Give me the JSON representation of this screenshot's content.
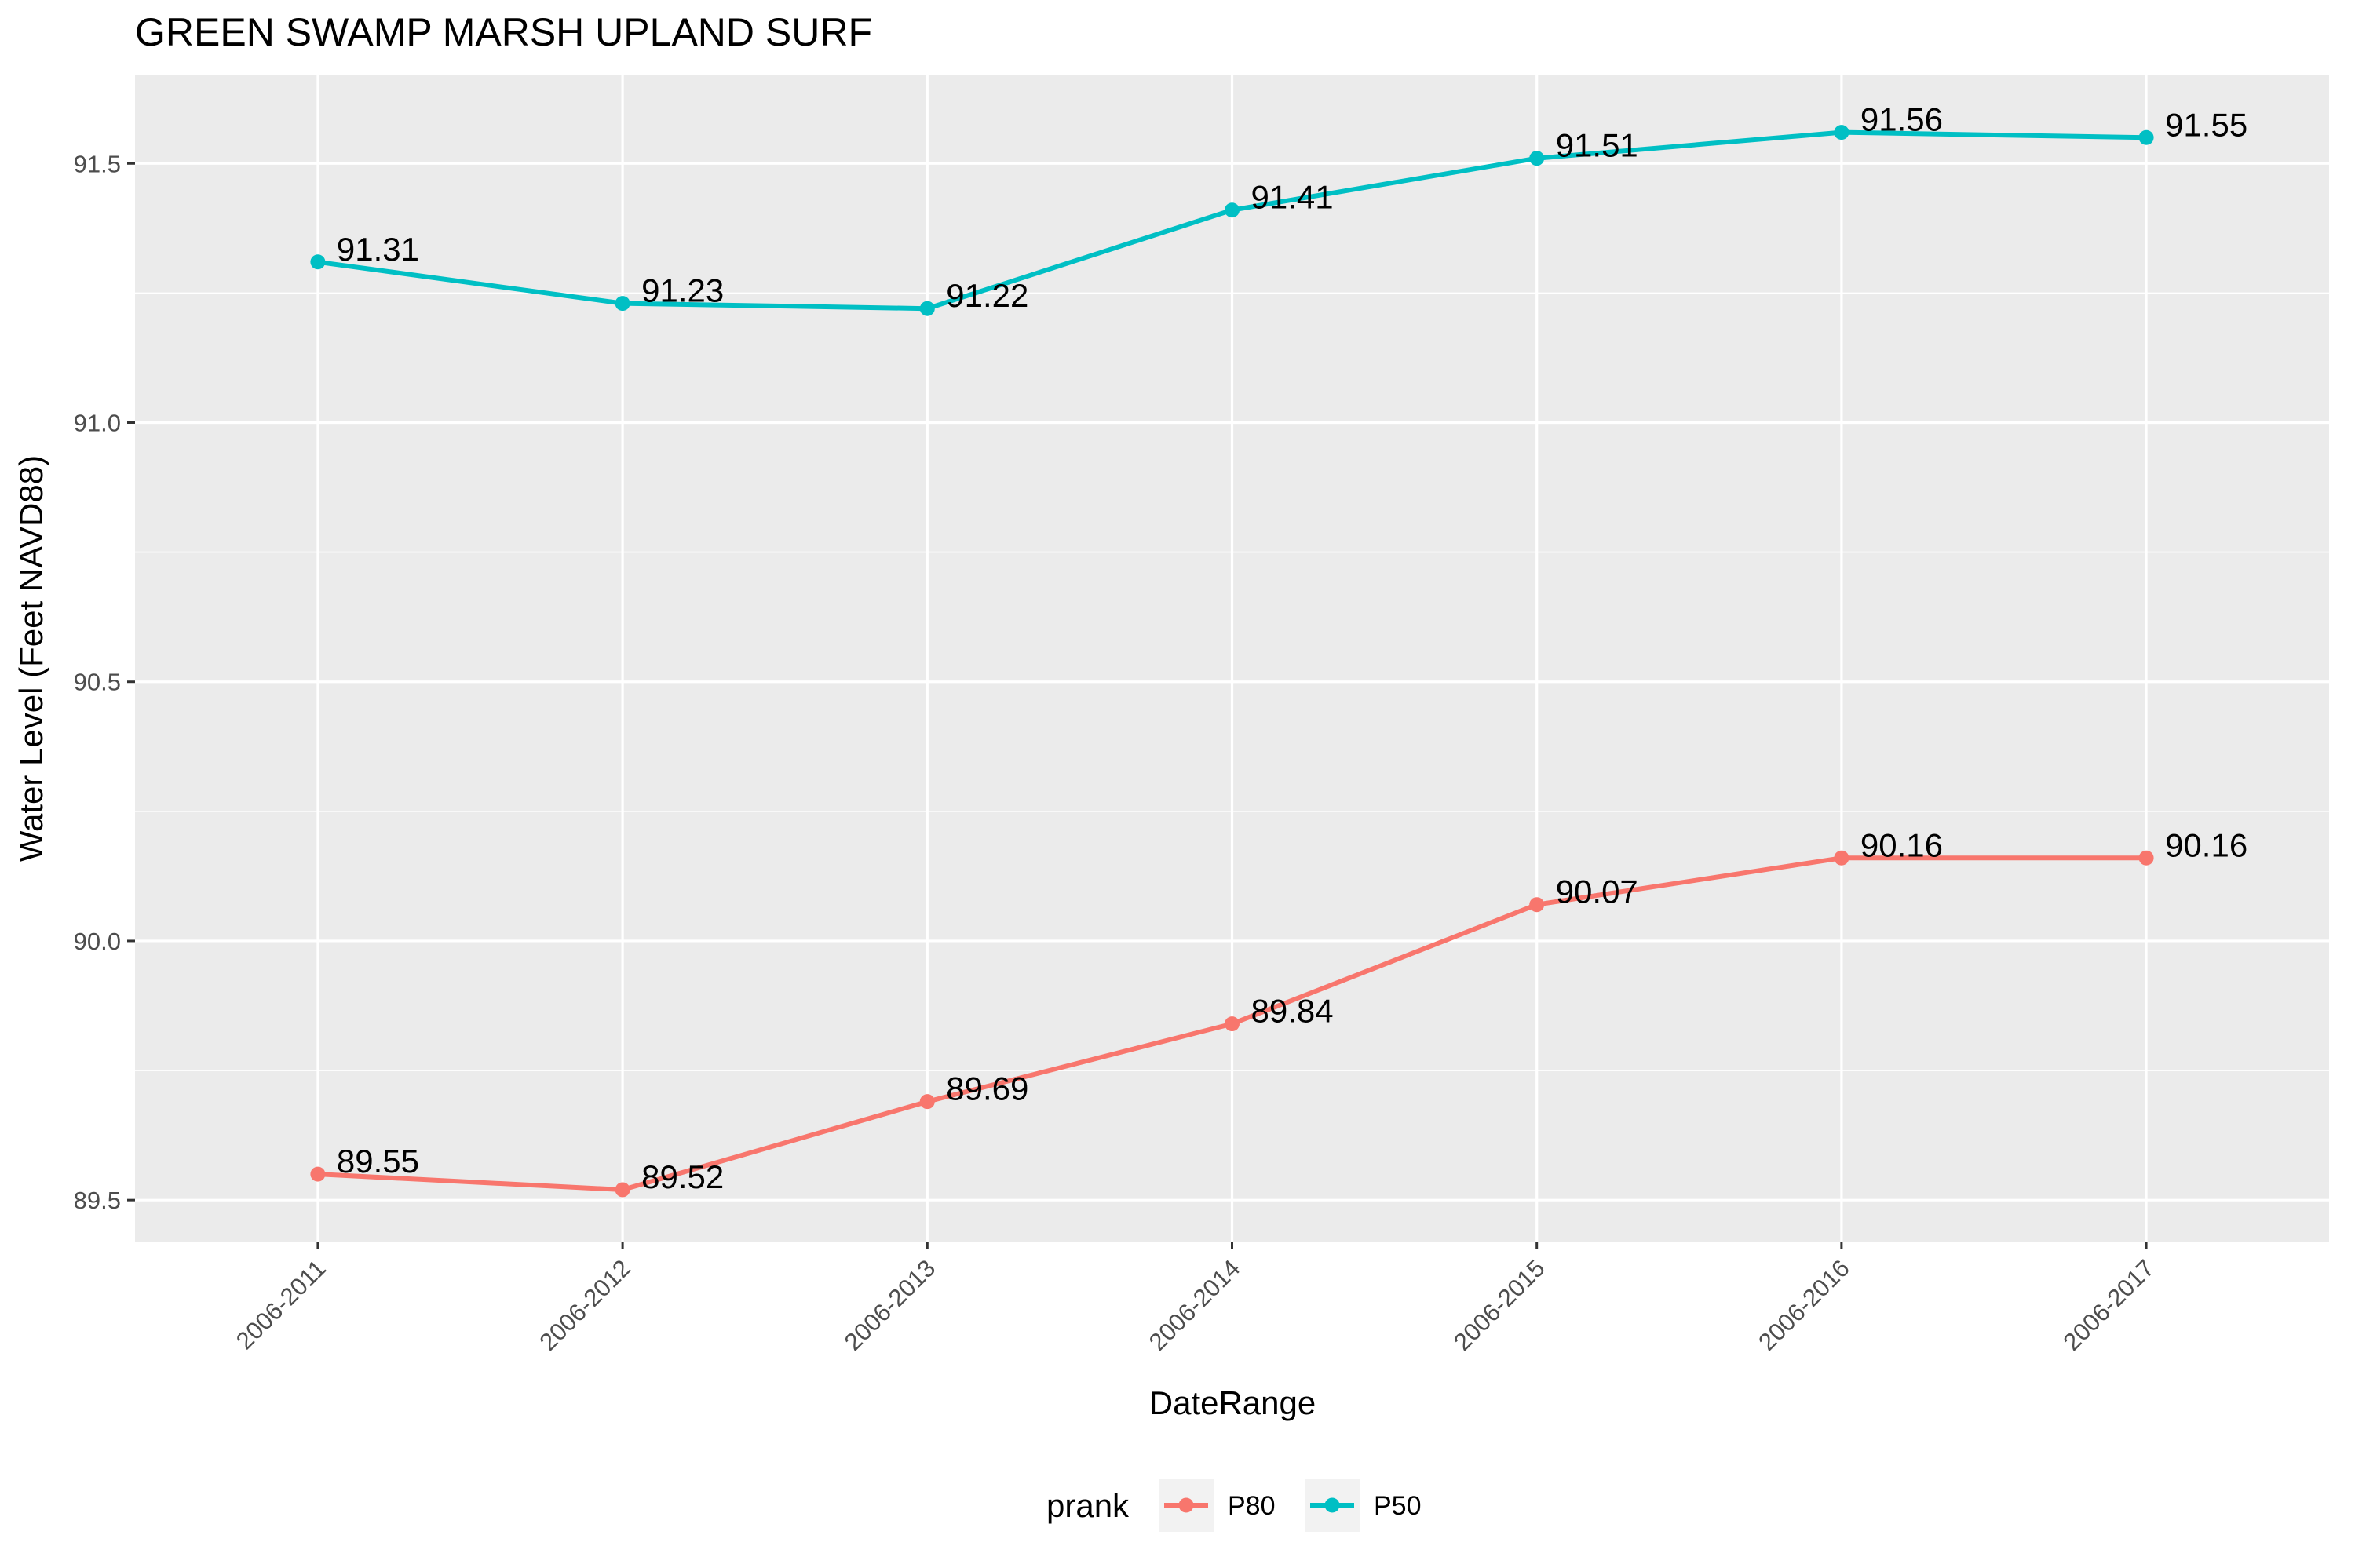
{
  "chart_data": {
    "type": "line",
    "title": "GREEN SWAMP MARSH UPLAND SURF",
    "xlabel": "DateRange",
    "ylabel": "Water Level (Feet NAVD88)",
    "categories": [
      "2006-2011",
      "2006-2012",
      "2006-2013",
      "2006-2014",
      "2006-2015",
      "2006-2016",
      "2006-2017"
    ],
    "ylim": [
      89.42,
      91.67
    ],
    "yticks": [
      89.5,
      90.0,
      90.5,
      91.0,
      91.5
    ],
    "ytick_labels": [
      "89.5",
      "90.0",
      "90.5",
      "91.0",
      "91.5"
    ],
    "grid": true,
    "legend": {
      "title": "prank",
      "position": "bottom"
    },
    "series": [
      {
        "name": "P80",
        "color": "#F8766D",
        "values": [
          89.55,
          89.52,
          89.69,
          89.84,
          90.07,
          90.16,
          90.16
        ],
        "labels": [
          "89.55",
          "89.52",
          "89.69",
          "89.84",
          "90.07",
          "90.16",
          "90.16"
        ]
      },
      {
        "name": "P50",
        "color": "#00BFC4",
        "values": [
          91.31,
          91.23,
          91.22,
          91.41,
          91.51,
          91.56,
          91.55
        ],
        "labels": [
          "91.31",
          "91.23",
          "91.22",
          "91.41",
          "91.51",
          "91.56",
          "91.55"
        ]
      }
    ]
  }
}
